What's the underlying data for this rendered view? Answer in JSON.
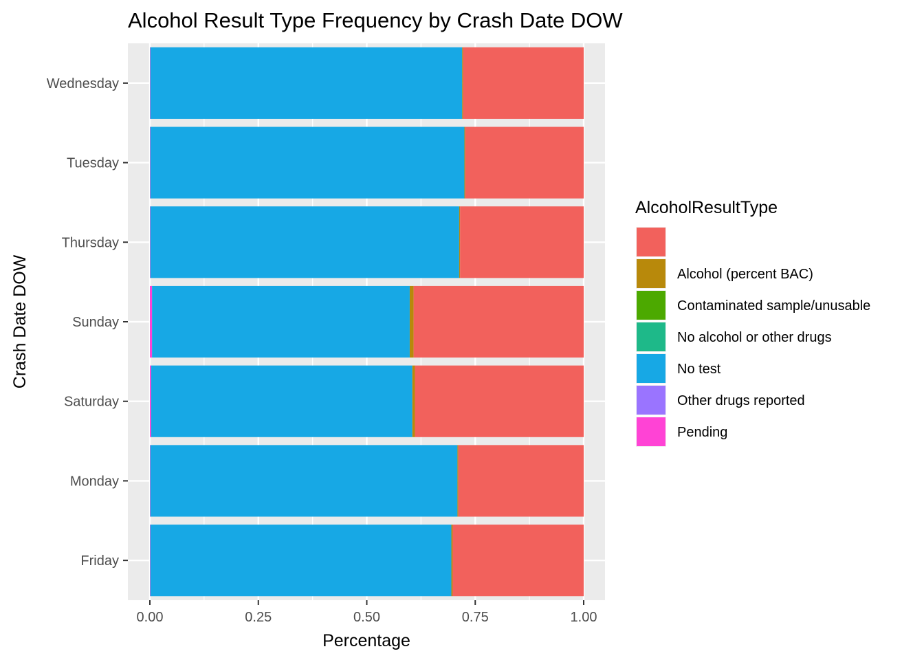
{
  "chart_data": {
    "type": "bar",
    "orientation": "horizontal",
    "stacked": true,
    "title": "Alcohol Result Type Frequency by Crash Date DOW",
    "xlabel": "Percentage",
    "ylabel": "Crash Date DOW",
    "xlim": [
      0,
      1
    ],
    "xticks": [
      0,
      0.25,
      0.5,
      0.75,
      1
    ],
    "xtick_labels": [
      "0.00",
      "0.25",
      "0.50",
      "0.75",
      "1.00"
    ],
    "categories": [
      "Wednesday",
      "Tuesday",
      "Thursday",
      "Sunday",
      "Saturday",
      "Monday",
      "Friday"
    ],
    "legend": {
      "title": "AlcoholResultType",
      "placement": "right"
    },
    "grid": true,
    "series": [
      {
        "name": "Pending",
        "color": "#FF43D5",
        "values": [
          0.001,
          0.001,
          0.001,
          0.005,
          0.003,
          0.001,
          0.001
        ]
      },
      {
        "name": "Other drugs reported",
        "color": "#9A74FF",
        "values": [
          0.0,
          0.0,
          0.0,
          0.0,
          0.0,
          0.0,
          0.0
        ]
      },
      {
        "name": "No test",
        "color": "#17A8E5",
        "values": [
          0.719,
          0.724,
          0.712,
          0.594,
          0.602,
          0.708,
          0.694
        ]
      },
      {
        "name": "No alcohol or other drugs",
        "color": "#1EB989",
        "values": [
          0.0,
          0.0,
          0.0,
          0.0,
          0.0,
          0.0,
          0.0
        ]
      },
      {
        "name": "Contaminated sample/unusable",
        "color": "#4CA900",
        "values": [
          0.0,
          0.0,
          0.0,
          0.0,
          0.0,
          0.0,
          0.0
        ]
      },
      {
        "name": "Alcohol (percent BAC)",
        "color": "#B8890B",
        "values": [
          0.002,
          0.002,
          0.002,
          0.009,
          0.006,
          0.002,
          0.003
        ]
      },
      {
        "name": "",
        "color": "#F2615C",
        "values": [
          0.278,
          0.273,
          0.285,
          0.392,
          0.389,
          0.289,
          0.302
        ]
      }
    ],
    "legend_order": [
      "",
      "Alcohol (percent BAC)",
      "Contaminated sample/unusable",
      "No alcohol or other drugs",
      "No test",
      "Other drugs reported",
      "Pending"
    ]
  }
}
